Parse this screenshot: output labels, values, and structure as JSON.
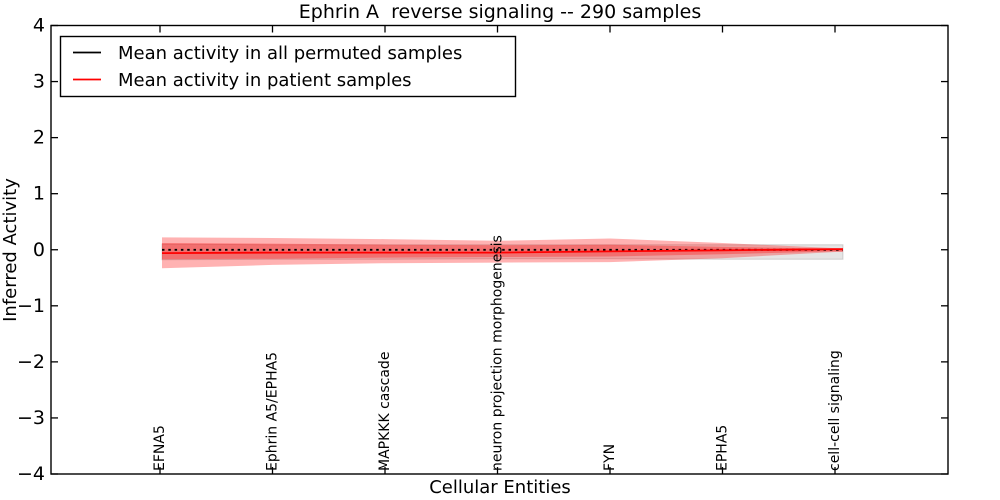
{
  "chart_data": {
    "type": "line",
    "title": "Ephrin A  reverse signaling -- 290 samples",
    "xlabel": "Cellular Entities",
    "ylabel": "Inferred Activity",
    "ylim": [
      -4,
      4
    ],
    "xtick_rotation": 90,
    "grid": false,
    "background": "#ffffff",
    "frame_color": "#000000",
    "yticklabels": [
      "4",
      "3",
      "2",
      "1",
      "0",
      "−1",
      "−2",
      "−3",
      "−4"
    ],
    "ytick_values": [
      4,
      3,
      2,
      1,
      0,
      -1,
      -2,
      -3,
      -4
    ],
    "categories": [
      "EFNA5",
      "Ephrin A5/EPHA5",
      "MAPKKK cascade",
      "neuron projection morphogenesis",
      "FYN",
      "EPHA5",
      "cell-cell signaling"
    ],
    "legend": {
      "position": "upper-left",
      "entries": [
        {
          "label": "Mean activity in all permuted samples",
          "color": "#000000",
          "style": "solid"
        },
        {
          "label": "Mean activity in patient samples",
          "color": "#ff0000",
          "style": "solid"
        }
      ]
    },
    "series": [
      {
        "name": "Mean activity in all permuted samples",
        "color": "#000000",
        "style": "dashed",
        "values": [
          0.0,
          0.0,
          0.0,
          0.0,
          0.0,
          0.0,
          0.0
        ]
      },
      {
        "name": "Mean activity in patient samples",
        "color": "#ff0000",
        "style": "solid",
        "values": [
          -0.06,
          -0.05,
          -0.05,
          -0.05,
          -0.03,
          -0.01,
          0.01
        ]
      }
    ],
    "bands": [
      {
        "name": "permuted-samples-std-band",
        "fill": "rgba(0,0,0,0.10)",
        "edge": "rgba(0,0,0,0.14)",
        "upper": [
          0.1,
          0.09,
          0.09,
          0.09,
          0.09,
          0.09,
          0.09
        ],
        "lower": [
          -0.18,
          -0.17,
          -0.17,
          -0.16,
          -0.16,
          -0.17,
          -0.17
        ]
      },
      {
        "name": "patient-samples-std-outer-band",
        "fill": "rgba(255,0,0,0.30)",
        "edge": "none",
        "upper": [
          0.22,
          0.21,
          0.19,
          0.16,
          0.2,
          0.12,
          0.03
        ],
        "lower": [
          -0.33,
          -0.27,
          -0.24,
          -0.23,
          -0.22,
          -0.15,
          -0.04
        ]
      },
      {
        "name": "patient-samples-std-inner-band",
        "fill": "rgba(255,0,0,0.30)",
        "edge": "none",
        "upper": [
          0.12,
          0.11,
          0.09,
          0.08,
          0.09,
          0.05,
          0.02
        ],
        "lower": [
          -0.17,
          -0.16,
          -0.14,
          -0.13,
          -0.12,
          -0.08,
          -0.03
        ]
      }
    ]
  }
}
